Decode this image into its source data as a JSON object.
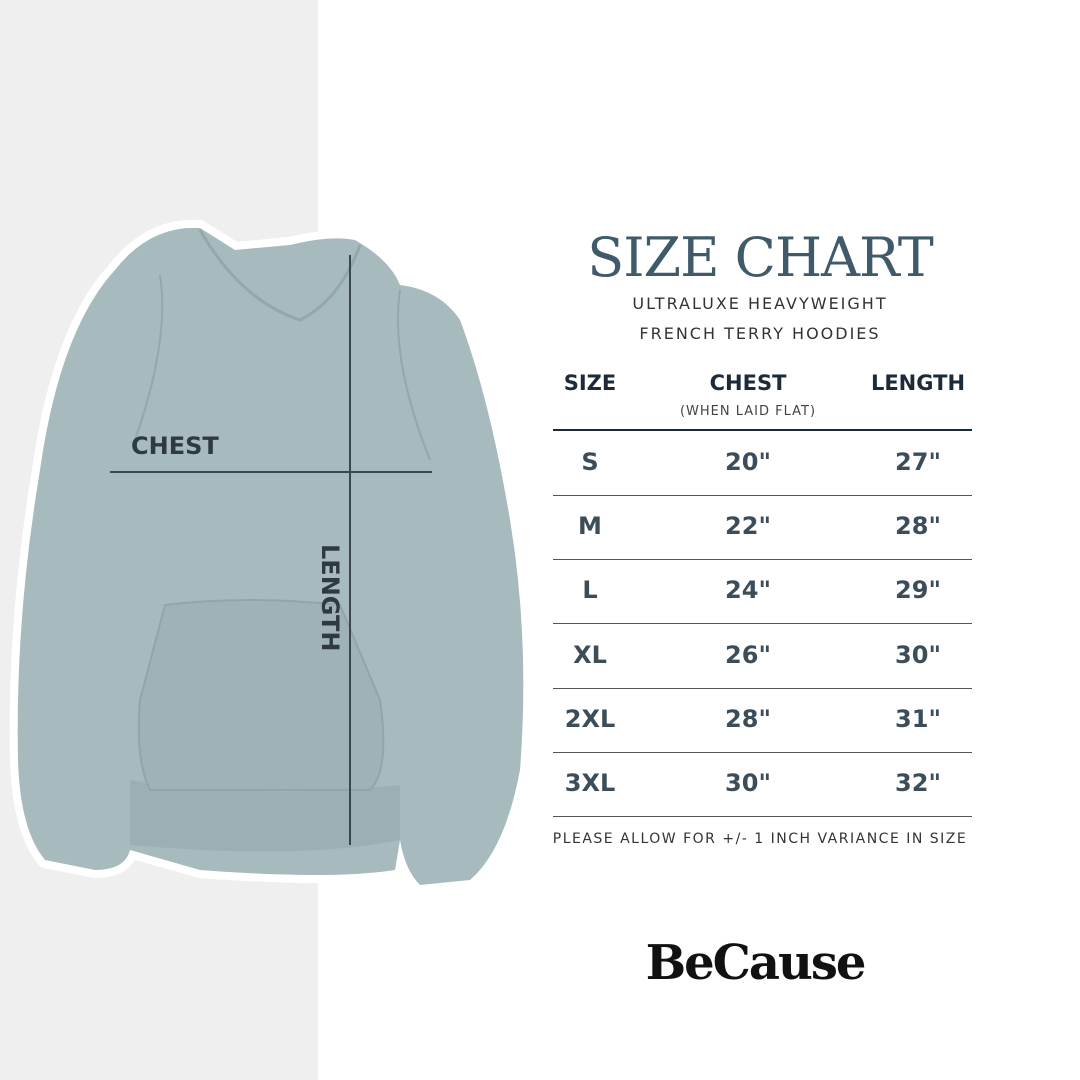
{
  "title": "SIZE CHART",
  "subtitle_line1": "ULTRALUXE HEAVYWEIGHT",
  "subtitle_line2": "FRENCH TERRY HOODIES",
  "diagram": {
    "chest_label": "CHEST",
    "length_label": "LENGTH"
  },
  "table": {
    "headers": {
      "size": "SIZE",
      "chest": "CHEST",
      "chest_note": "(WHEN LAID FLAT)",
      "length": "LENGTH"
    },
    "rows": [
      {
        "size": "S",
        "chest": "20\"",
        "length": "27\""
      },
      {
        "size": "M",
        "chest": "22\"",
        "length": "28\""
      },
      {
        "size": "L",
        "chest": "24\"",
        "length": "29\""
      },
      {
        "size": "XL",
        "chest": "26\"",
        "length": "30\""
      },
      {
        "size": "2XL",
        "chest": "28\"",
        "length": "31\""
      },
      {
        "size": "3XL",
        "chest": "30\"",
        "length": "32\""
      }
    ]
  },
  "footer_note": "PLEASE ALLOW FOR +/- 1 INCH VARIANCE IN SIZE",
  "brand": "BeCause",
  "colors": {
    "title": "#3f5a69",
    "hoodie": "#a7babd",
    "background_strip": "#efefef"
  }
}
